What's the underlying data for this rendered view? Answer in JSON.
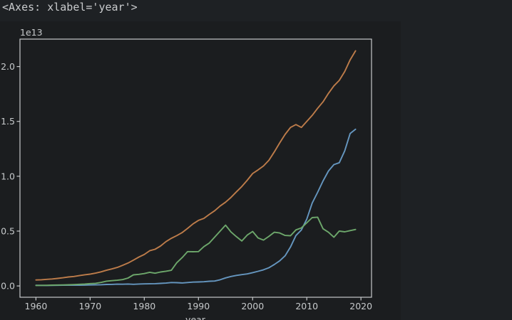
{
  "output": {
    "repr_text": "<Axes: xlabel='year'>"
  },
  "figure": {
    "offset_text": "1e13",
    "xlabel": "year",
    "bg_color": "#1b1d1f",
    "page_bg_color": "#1e2124",
    "axis_color": "#c6c9cb"
  },
  "chart_data": {
    "type": "line",
    "title": "",
    "xlabel": "year",
    "ylabel": "",
    "y_offset_label": "1e13",
    "grid": false,
    "legend": "none",
    "xlim": [
      1957.05,
      2021.95
    ],
    "ylim": [
      -0.103,
      2.2502
    ],
    "xticks": [
      1960,
      1970,
      1980,
      1990,
      2000,
      2010,
      2020
    ],
    "xtick_labels": [
      "1960",
      "1970",
      "1980",
      "1990",
      "2000",
      "2010",
      "2020"
    ],
    "yticks": [
      0.0,
      0.5,
      1.0,
      1.5,
      2.0
    ],
    "ytick_labels": [
      "0.0",
      "0.5",
      "1.0",
      "1.5",
      "2.0"
    ],
    "x": [
      1960,
      1961,
      1962,
      1963,
      1964,
      1965,
      1966,
      1967,
      1968,
      1969,
      1970,
      1971,
      1972,
      1973,
      1974,
      1975,
      1976,
      1977,
      1978,
      1979,
      1980,
      1981,
      1982,
      1983,
      1984,
      1985,
      1986,
      1987,
      1988,
      1989,
      1990,
      1991,
      1992,
      1993,
      1994,
      1995,
      1996,
      1997,
      1998,
      1999,
      2000,
      2001,
      2002,
      2003,
      2004,
      2005,
      2006,
      2007,
      2008,
      2009,
      2010,
      2011,
      2012,
      2013,
      2014,
      2015,
      2016,
      2017,
      2018,
      2019
    ],
    "series": [
      {
        "name": "blue-line",
        "color": "#6596bf",
        "values": [
          0.006,
          0.005,
          0.0047,
          0.0051,
          0.006,
          0.007,
          0.0077,
          0.0073,
          0.0071,
          0.008,
          0.0093,
          0.0099,
          0.0113,
          0.0139,
          0.0144,
          0.0163,
          0.0154,
          0.0175,
          0.015,
          0.0178,
          0.0191,
          0.0196,
          0.0205,
          0.0231,
          0.026,
          0.031,
          0.0301,
          0.0273,
          0.0312,
          0.0348,
          0.0361,
          0.0383,
          0.0427,
          0.0445,
          0.0564,
          0.0735,
          0.0864,
          0.0962,
          0.1029,
          0.1094,
          0.1211,
          0.1339,
          0.1471,
          0.166,
          0.1955,
          0.2286,
          0.2752,
          0.355,
          0.4594,
          0.5102,
          0.6087,
          0.7552,
          0.8532,
          0.957,
          1.0476,
          1.1062,
          1.1233,
          1.231,
          1.3895,
          1.428
        ]
      },
      {
        "name": "orange-line",
        "color": "#bd7c4a",
        "values": [
          0.0543,
          0.0563,
          0.0605,
          0.0639,
          0.0686,
          0.0744,
          0.0815,
          0.0862,
          0.0943,
          0.102,
          0.1076,
          0.1168,
          0.1282,
          0.1429,
          0.1549,
          0.1689,
          0.1878,
          0.2086,
          0.2357,
          0.2632,
          0.2863,
          0.3211,
          0.3345,
          0.3638,
          0.4041,
          0.4347,
          0.459,
          0.487,
          0.5253,
          0.5658,
          0.598,
          0.6158,
          0.652,
          0.6859,
          0.7287,
          0.764,
          0.8073,
          0.8578,
          0.9063,
          0.9631,
          1.0251,
          1.0582,
          1.0936,
          1.1458,
          1.2214,
          1.3037,
          1.3815,
          1.4452,
          1.4713,
          1.4449,
          1.4992,
          1.5543,
          1.6197,
          1.6785,
          1.7553,
          1.8238,
          1.8745,
          1.9543,
          2.0612,
          2.1433
        ]
      },
      {
        "name": "green-line",
        "color": "#6da76b",
        "values": [
          0.0044,
          0.0054,
          0.006,
          0.007,
          0.0082,
          0.0091,
          0.0106,
          0.0124,
          0.0147,
          0.0172,
          0.0213,
          0.024,
          0.0318,
          0.0432,
          0.048,
          0.0521,
          0.058,
          0.0721,
          0.1013,
          0.1055,
          0.1128,
          0.1245,
          0.1158,
          0.1269,
          0.1345,
          0.1427,
          0.2121,
          0.2585,
          0.3134,
          0.3117,
          0.3133,
          0.3585,
          0.3909,
          0.4455,
          0.4998,
          0.5546,
          0.4924,
          0.4493,
          0.4099,
          0.4636,
          0.4968,
          0.4374,
          0.4182,
          0.4519,
          0.4893,
          0.4831,
          0.4601,
          0.4579,
          0.5107,
          0.5289,
          0.5759,
          0.6233,
          0.6272,
          0.5212,
          0.4897,
          0.4444,
          0.5004,
          0.4931,
          0.5041,
          0.5148
        ]
      }
    ]
  }
}
